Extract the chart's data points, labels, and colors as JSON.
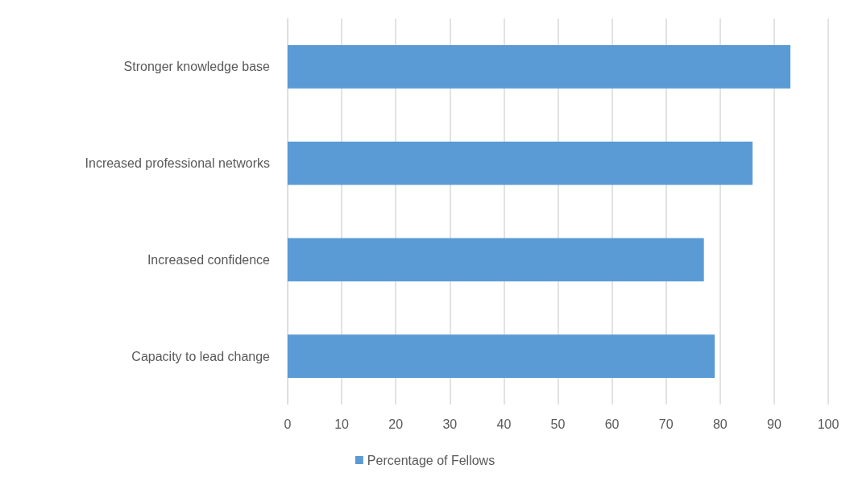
{
  "chart_data": {
    "type": "bar",
    "orientation": "horizontal",
    "categories": [
      "Stronger knowledge base",
      "Increased professional networks",
      "Increased confidence",
      "Capacity to lead change"
    ],
    "series": [
      {
        "name": "Percentage of Fellows",
        "color": "#5b9bd5",
        "values": [
          93,
          86,
          77,
          79
        ]
      }
    ],
    "xlim": [
      0,
      100
    ],
    "xticks": [
      0,
      10,
      20,
      30,
      40,
      50,
      60,
      70,
      80,
      90,
      100
    ],
    "grid": "x",
    "legend": "bottom"
  }
}
